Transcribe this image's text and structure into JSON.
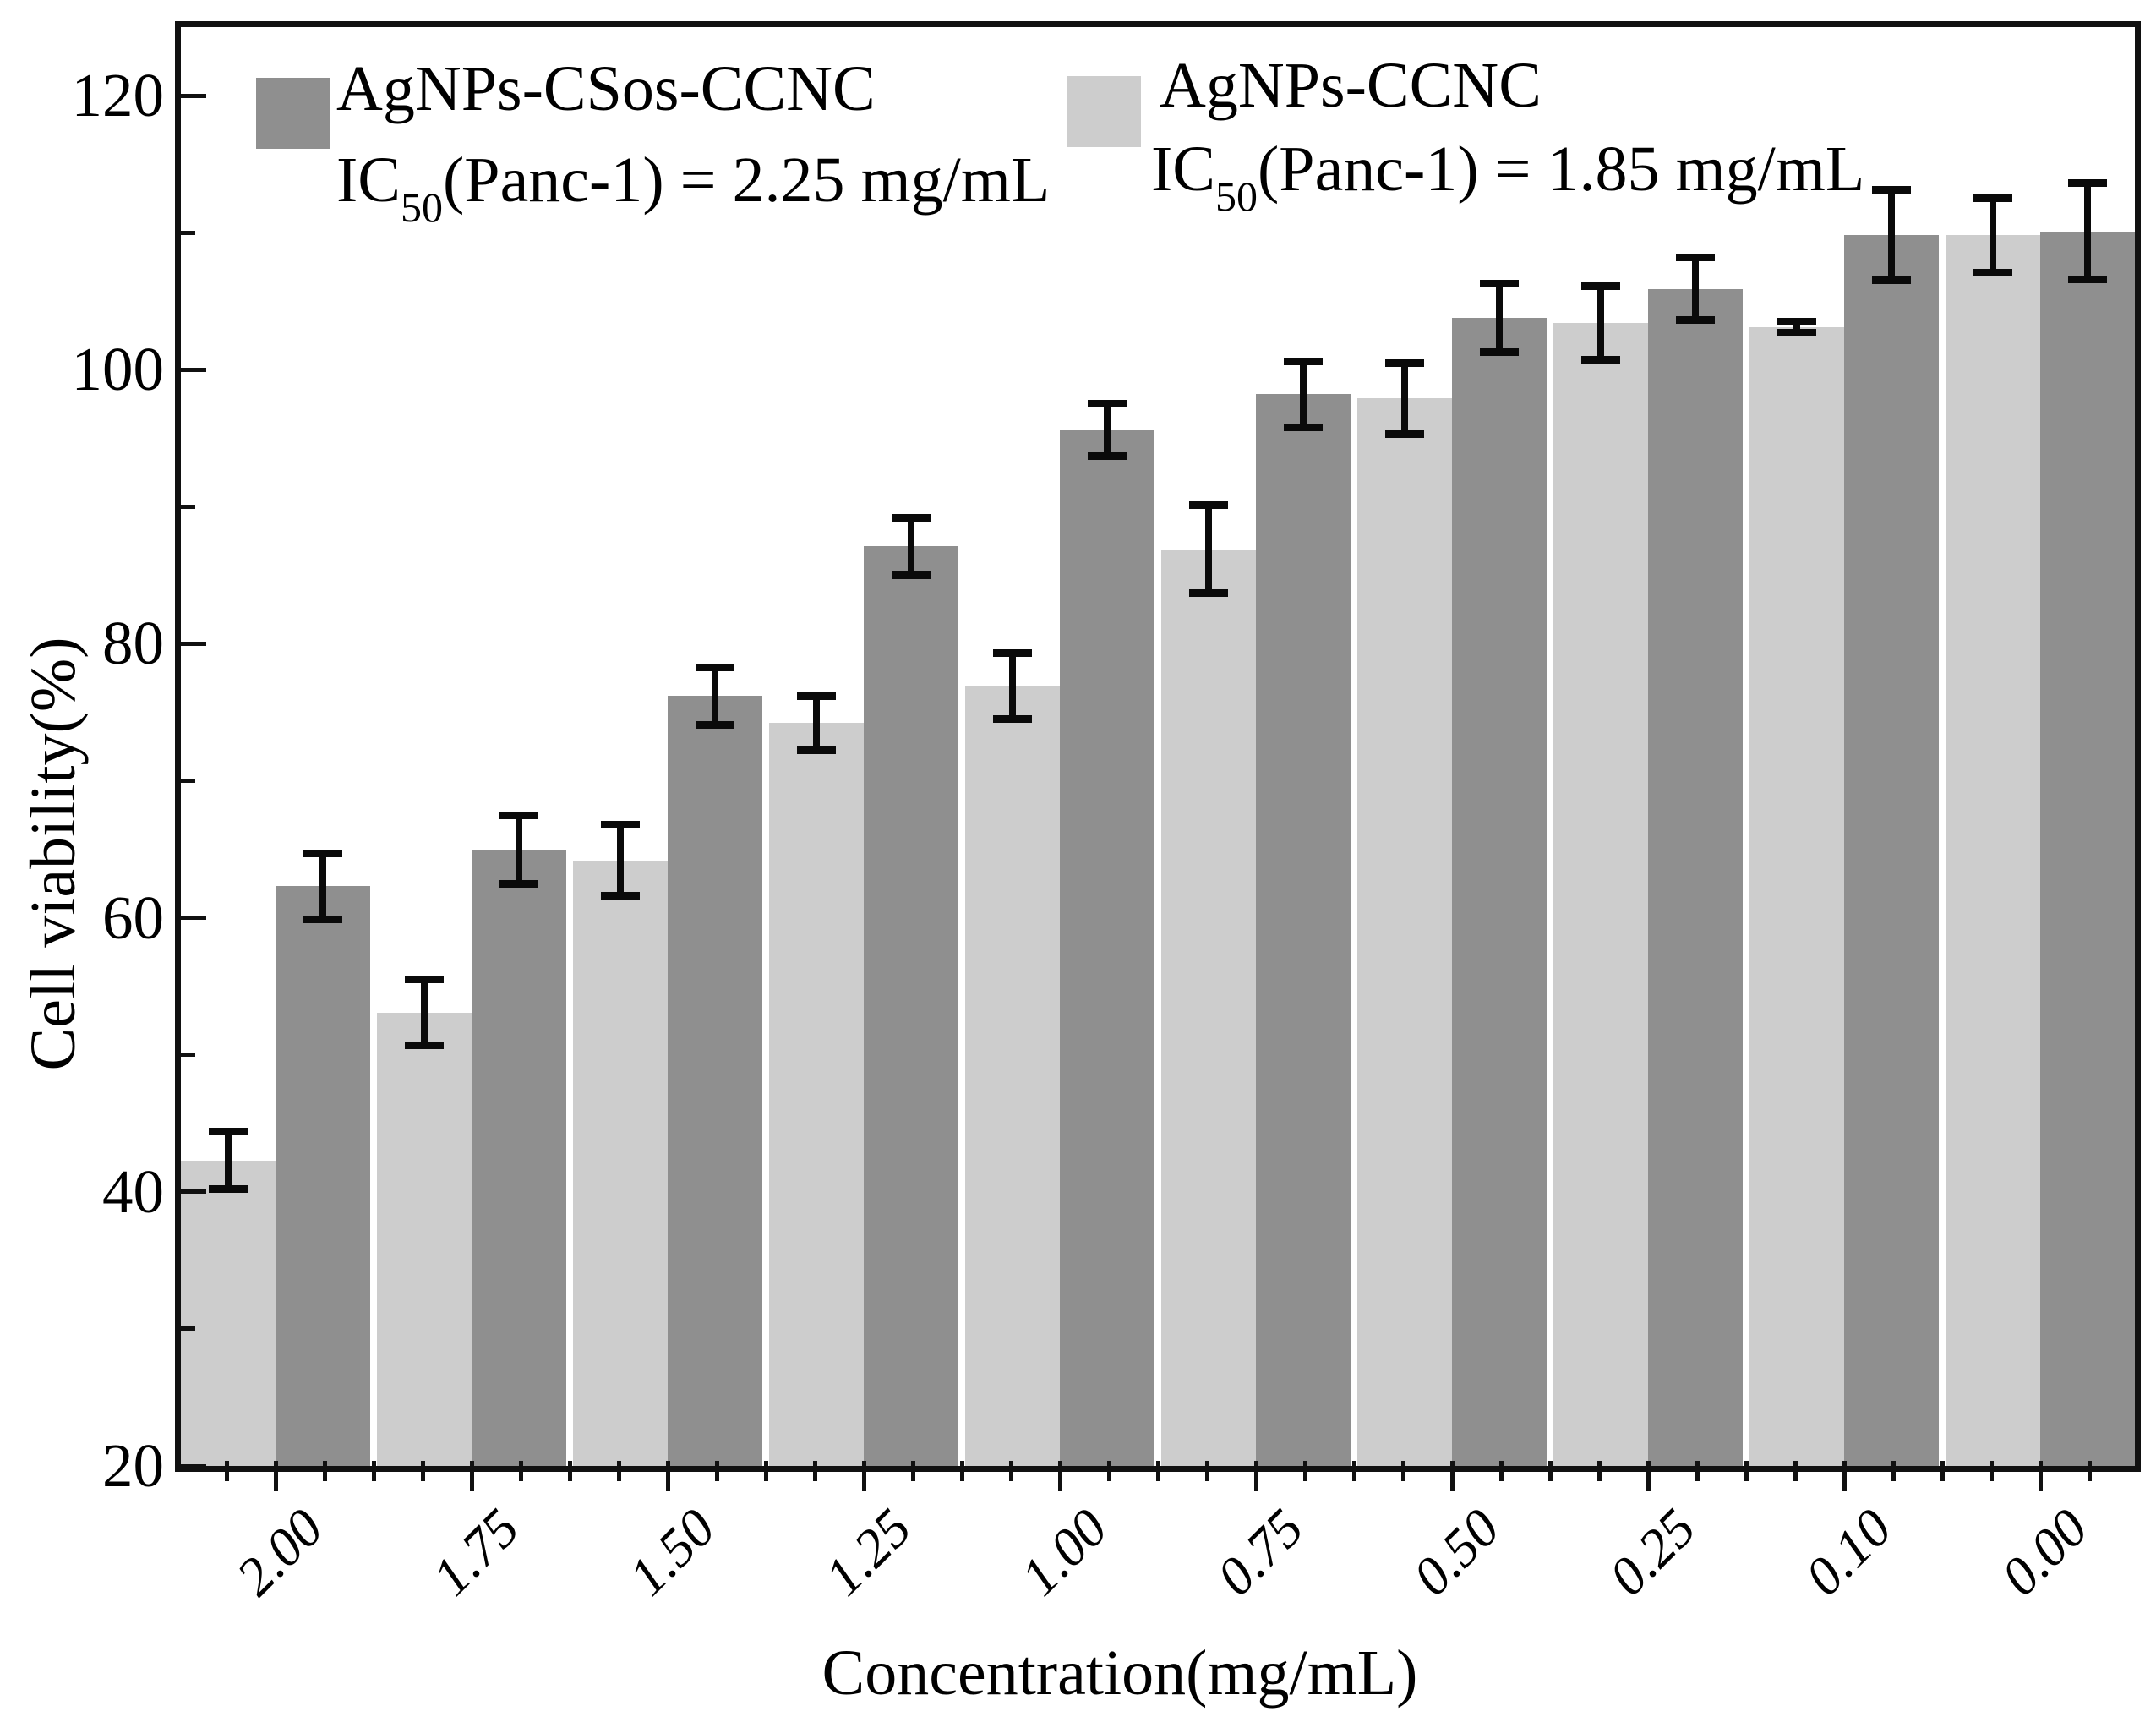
{
  "figure": {
    "background": "#ffffff",
    "frame_color": "#111111",
    "error_bar_color": "#0a0a0a"
  },
  "legend": {
    "items": [
      {
        "label": "AgNPs-CSos-CCNC",
        "color": "#8f8f8f",
        "ic_prefix": "IC",
        "ic_sub": "50",
        "ic_text": "(Panc-1) = 2.25 mg/mL"
      },
      {
        "label": "AgNPs-CCNC",
        "color": "#cdcdcd",
        "ic_prefix": "IC",
        "ic_sub": "50",
        "ic_text": "(Panc-1) = 1.85 mg/mL"
      }
    ]
  },
  "chart_data": {
    "type": "bar",
    "title": "",
    "xlabel": "Concentration(mg/mL)",
    "ylabel": "Cell viability(%)",
    "categories": [
      "2.00",
      "1.75",
      "1.50",
      "1.25",
      "1.00",
      "0.75",
      "0.50",
      "0.25",
      "0.10",
      "0.00"
    ],
    "ylim": [
      20,
      125
    ],
    "yticks": [
      20,
      40,
      60,
      80,
      100,
      120
    ],
    "yticks_minor": [
      30,
      50,
      70,
      90,
      110
    ],
    "grid": false,
    "legend_position": "top-inside",
    "bar_order_note": "within each category pair: AgNPs-CCNC (light) drawn left, AgNPs-CSos-CCNC (dark) drawn right",
    "series": [
      {
        "name": "AgNPs-CCNC",
        "color": "#cdcdcd",
        "values": [
          42.3,
          53.1,
          64.2,
          74.2,
          76.9,
          86.9,
          97.9,
          103.4,
          103.1,
          109.8
        ],
        "errors": [
          2.1,
          2.4,
          2.6,
          2.0,
          2.4,
          3.2,
          2.6,
          2.7,
          0.4,
          2.7
        ]
      },
      {
        "name": "AgNPs-CSos-CCNC",
        "color": "#8f8f8f",
        "values": [
          62.3,
          65.0,
          76.2,
          87.1,
          95.6,
          98.2,
          103.8,
          105.9,
          109.8,
          110.1
        ],
        "errors": [
          2.4,
          2.5,
          2.1,
          2.1,
          1.9,
          2.4,
          2.5,
          2.3,
          3.3,
          3.5
        ]
      }
    ]
  }
}
